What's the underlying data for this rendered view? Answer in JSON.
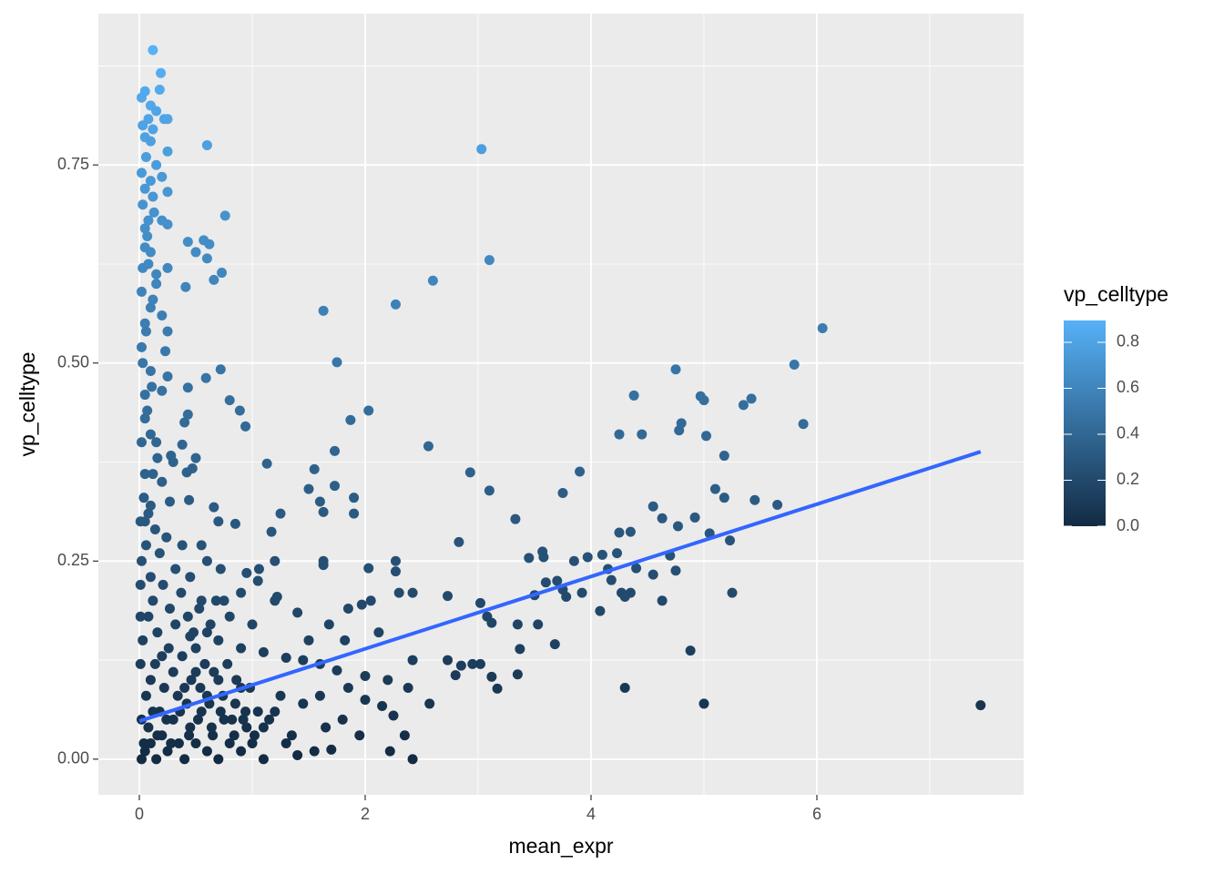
{
  "chart_data": {
    "type": "scatter",
    "x_label": "mean_expr",
    "y_label": "vp_celltype",
    "xlim": [
      -0.363,
      7.831
    ],
    "ylim": [
      -0.045,
      0.941
    ],
    "xticks": [
      0,
      2,
      4,
      6
    ],
    "yticks": [
      {
        "value": 0,
        "label": "0.00"
      },
      {
        "value": 0.25,
        "label": "0.25"
      },
      {
        "value": 0.5,
        "label": "0.50"
      },
      {
        "value": 0.75,
        "label": "0.75"
      }
    ],
    "x_minor_ticks": [
      1,
      3,
      5,
      7
    ],
    "y_minor_ticks": [
      0.125,
      0.375,
      0.625,
      0.875
    ],
    "grid": true,
    "legend": {
      "title": "vp_celltype",
      "position": "right",
      "low_color": "#132B43",
      "high_color": "#56B1F7",
      "clim": [
        0,
        0.895
      ],
      "ticks": [
        {
          "value": 0,
          "label": "0.0"
        },
        {
          "value": 0.2,
          "label": "0.2"
        },
        {
          "value": 0.4,
          "label": "0.4"
        },
        {
          "value": 0.6,
          "label": "0.6"
        },
        {
          "value": 0.8,
          "label": "0.8"
        }
      ]
    },
    "trend": {
      "x": [
        0,
        7.45
      ],
      "y": [
        0.048,
        0.388
      ],
      "color": "#3366FF"
    },
    "x": [
      0.12,
      0.19,
      0.18,
      0.05,
      0.02,
      0.1,
      0.15,
      0.22,
      0.25,
      0.08,
      0.12,
      0.03,
      0.05,
      0.1,
      0.25,
      0.6,
      3.03,
      0.06,
      0.15,
      0.02,
      0.1,
      0.2,
      0.05,
      0.25,
      0.12,
      0.03,
      0.08,
      0.25,
      0.76,
      0.05,
      0.2,
      0.43,
      0.57,
      0.62,
      0.5,
      0.6,
      0.05,
      0.1,
      0.25,
      0.73,
      0.66,
      0.15,
      0.08,
      0.41,
      3.1,
      2.6,
      2.27,
      1.63,
      0.02,
      0.1,
      0.2,
      0.05,
      0.25,
      1.75,
      6.05,
      5.8,
      4.75,
      0.23,
      0.02,
      0.72,
      0.59,
      0.25,
      0.1,
      0.05,
      0.43,
      0.2,
      0.8,
      0.89,
      2.03,
      0.43,
      0.4,
      0.94,
      1.87,
      4.38,
      4.97,
      5.0,
      5.42,
      5.35,
      5.88,
      4.8,
      4.78,
      4.25,
      4.45,
      5.02,
      0.05,
      0.1,
      2.56,
      0.38,
      0.15,
      0.28,
      0.3,
      0.5,
      1.73,
      1.13,
      0.47,
      0.42,
      2.93,
      3.9,
      5.18,
      0.05,
      0.2,
      1.55,
      1.5,
      1.73,
      3.1,
      3.75,
      5.1,
      5.18,
      5.45,
      5.65,
      4.55,
      4.63,
      4.92,
      4.77,
      5.05,
      5.23,
      3.33,
      0.66,
      1.6,
      1.9,
      1.9,
      1.63,
      1.25,
      0.44,
      0.27,
      0.1,
      0.05,
      0.7,
      0.85,
      1.2,
      1.17,
      2.83,
      4.25,
      4.35,
      4.7,
      4.4,
      4.1,
      4.23,
      3.97,
      3.57,
      3.45,
      3.58,
      3.85,
      3.92,
      4.08,
      4.3,
      4.35,
      4.15,
      4.18,
      4.27,
      4.55,
      4.63,
      4.75,
      5.25,
      3.7,
      3.6,
      3.78,
      3.75,
      3.5,
      2.27,
      2.27,
      2.03,
      1.63,
      1.63,
      2.42,
      2.3,
      2.73,
      3.02,
      3.08,
      3.12,
      3.35,
      3.53,
      3.68,
      3.37,
      4.88,
      3.02,
      2.95,
      3.12,
      3.35,
      4.3,
      3.17,
      5.0,
      7.45,
      2.8,
      2.73,
      2.85,
      2.42,
      2.12,
      1.97,
      2.05,
      1.85,
      1.68,
      1.5,
      1.82,
      1.4,
      1.22,
      1.2,
      1.05,
      0.95,
      1.06,
      0.72,
      0.6,
      0.9,
      0.75,
      0.55,
      0.8,
      1.0,
      0.6,
      0.45,
      1.1,
      1.3,
      1.45,
      1.6,
      1.75,
      2.0,
      2.2,
      2.38,
      2.57,
      2.0,
      2.15,
      2.25,
      2.35,
      2.22,
      2.42,
      1.8,
      1.65,
      1.55,
      1.7,
      1.35,
      1.4,
      1.1,
      1.2,
      0.9,
      0.7,
      0.5,
      0.02,
      0.05,
      0.1,
      0.15,
      0.2,
      0.25,
      0.3,
      0.35,
      0.4,
      0.45,
      0.5,
      0.55,
      0.6,
      0.65,
      0.7,
      0.75,
      0.8,
      0.85,
      0.9,
      0.95,
      1.0,
      1.05,
      1.1,
      0.02,
      0.06,
      0.1,
      0.14,
      0.18,
      0.22,
      0.26,
      0.3,
      0.34,
      0.38,
      0.42,
      0.46,
      0.5,
      0.54,
      0.58,
      0.62,
      0.66,
      0.7,
      0.74,
      0.78,
      0.82,
      0.86,
      0.9,
      0.94,
      0.98,
      0.03,
      0.08,
      0.12,
      0.16,
      0.21,
      0.27,
      0.32,
      0.37,
      0.43,
      0.48,
      0.53,
      0.63,
      0.68,
      0.02,
      0.06,
      0.1,
      0.14,
      0.18,
      0.24,
      0.32,
      0.38,
      0.45,
      0.55,
      0.04,
      0.08,
      0.12,
      0.16,
      0.02,
      0.07,
      0.11,
      0.03,
      0.06,
      0.12,
      0.15,
      0.03,
      0.07,
      0.13,
      0.01,
      0.01,
      0.01,
      0.01,
      0.04,
      0.08,
      0.12,
      0.16,
      0.24,
      0.28,
      0.36,
      0.44,
      0.52,
      0.64,
      0.72,
      0.84,
      0.92,
      1.02,
      1.15,
      1.25,
      1.3,
      1.45,
      1.6,
      1.85,
      1.95,
      0.4,
      0.2,
      0.6
    ],
    "y": [
      0.895,
      0.866,
      0.845,
      0.843,
      0.835,
      0.825,
      0.818,
      0.808,
      0.808,
      0.808,
      0.795,
      0.8,
      0.785,
      0.78,
      0.767,
      0.775,
      0.77,
      0.76,
      0.75,
      0.74,
      0.73,
      0.735,
      0.72,
      0.716,
      0.71,
      0.7,
      0.68,
      0.675,
      0.686,
      0.67,
      0.68,
      0.653,
      0.655,
      0.65,
      0.64,
      0.632,
      0.646,
      0.64,
      0.62,
      0.614,
      0.605,
      0.612,
      0.625,
      0.596,
      0.63,
      0.604,
      0.574,
      0.566,
      0.59,
      0.57,
      0.56,
      0.55,
      0.54,
      0.501,
      0.544,
      0.498,
      0.492,
      0.515,
      0.52,
      0.492,
      0.481,
      0.483,
      0.49,
      0.46,
      0.469,
      0.465,
      0.453,
      0.44,
      0.44,
      0.435,
      0.425,
      0.42,
      0.428,
      0.459,
      0.458,
      0.453,
      0.455,
      0.447,
      0.423,
      0.424,
      0.415,
      0.41,
      0.41,
      0.408,
      0.43,
      0.41,
      0.395,
      0.397,
      0.4,
      0.383,
      0.375,
      0.38,
      0.389,
      0.373,
      0.367,
      0.362,
      0.362,
      0.363,
      0.383,
      0.36,
      0.35,
      0.366,
      0.341,
      0.345,
      0.339,
      0.336,
      0.341,
      0.33,
      0.327,
      0.321,
      0.319,
      0.304,
      0.305,
      0.294,
      0.285,
      0.276,
      0.303,
      0.318,
      0.325,
      0.33,
      0.31,
      0.312,
      0.31,
      0.327,
      0.325,
      0.32,
      0.3,
      0.3,
      0.297,
      0.25,
      0.287,
      0.274,
      0.286,
      0.287,
      0.257,
      0.241,
      0.258,
      0.26,
      0.255,
      0.262,
      0.254,
      0.255,
      0.25,
      0.21,
      0.187,
      0.205,
      0.21,
      0.24,
      0.226,
      0.21,
      0.233,
      0.2,
      0.238,
      0.21,
      0.225,
      0.223,
      0.205,
      0.214,
      0.207,
      0.25,
      0.237,
      0.241,
      0.25,
      0.245,
      0.21,
      0.21,
      0.206,
      0.197,
      0.18,
      0.172,
      0.17,
      0.17,
      0.145,
      0.139,
      0.137,
      0.12,
      0.12,
      0.104,
      0.107,
      0.09,
      0.089,
      0.07,
      0.068,
      0.106,
      0.125,
      0.118,
      0.125,
      0.16,
      0.195,
      0.2,
      0.19,
      0.17,
      0.15,
      0.15,
      0.185,
      0.205,
      0.2,
      0.225,
      0.235,
      0.24,
      0.24,
      0.25,
      0.21,
      0.2,
      0.2,
      0.18,
      0.17,
      0.16,
      0.155,
      0.135,
      0.128,
      0.125,
      0.12,
      0.112,
      0.105,
      0.1,
      0.09,
      0.07,
      0.075,
      0.067,
      0.055,
      0.03,
      0.01,
      0.0,
      0.05,
      0.04,
      0.01,
      0.012,
      0.03,
      0.005,
      0.04,
      0.06,
      0.09,
      0.1,
      0.11,
      0.0,
      0.01,
      0.02,
      0.0,
      0.03,
      0.01,
      0.05,
      0.02,
      0.0,
      0.04,
      0.02,
      0.06,
      0.01,
      0.03,
      0.0,
      0.05,
      0.02,
      0.07,
      0.01,
      0.04,
      0.02,
      0.06,
      0.0,
      0.05,
      0.08,
      0.1,
      0.12,
      0.06,
      0.09,
      0.14,
      0.11,
      0.08,
      0.13,
      0.07,
      0.1,
      0.14,
      0.09,
      0.12,
      0.07,
      0.11,
      0.15,
      0.08,
      0.12,
      0.05,
      0.1,
      0.14,
      0.06,
      0.09,
      0.15,
      0.18,
      0.2,
      0.16,
      0.22,
      0.19,
      0.17,
      0.21,
      0.18,
      0.16,
      0.19,
      0.17,
      0.2,
      0.25,
      0.27,
      0.23,
      0.29,
      0.26,
      0.28,
      0.24,
      0.27,
      0.23,
      0.27,
      0.33,
      0.31,
      0.36,
      0.38,
      0.4,
      0.44,
      0.47,
      0.5,
      0.54,
      0.58,
      0.6,
      0.62,
      0.66,
      0.69,
      0.12,
      0.18,
      0.22,
      0.3,
      0.02,
      0.04,
      0.06,
      0.03,
      0.05,
      0.02,
      0.06,
      0.03,
      0.05,
      0.04,
      0.06,
      0.03,
      0.05,
      0.03,
      0.05,
      0.08,
      0.02,
      0.07,
      0.08,
      0.09,
      0.03,
      0.09,
      0.13,
      0.08
    ]
  }
}
